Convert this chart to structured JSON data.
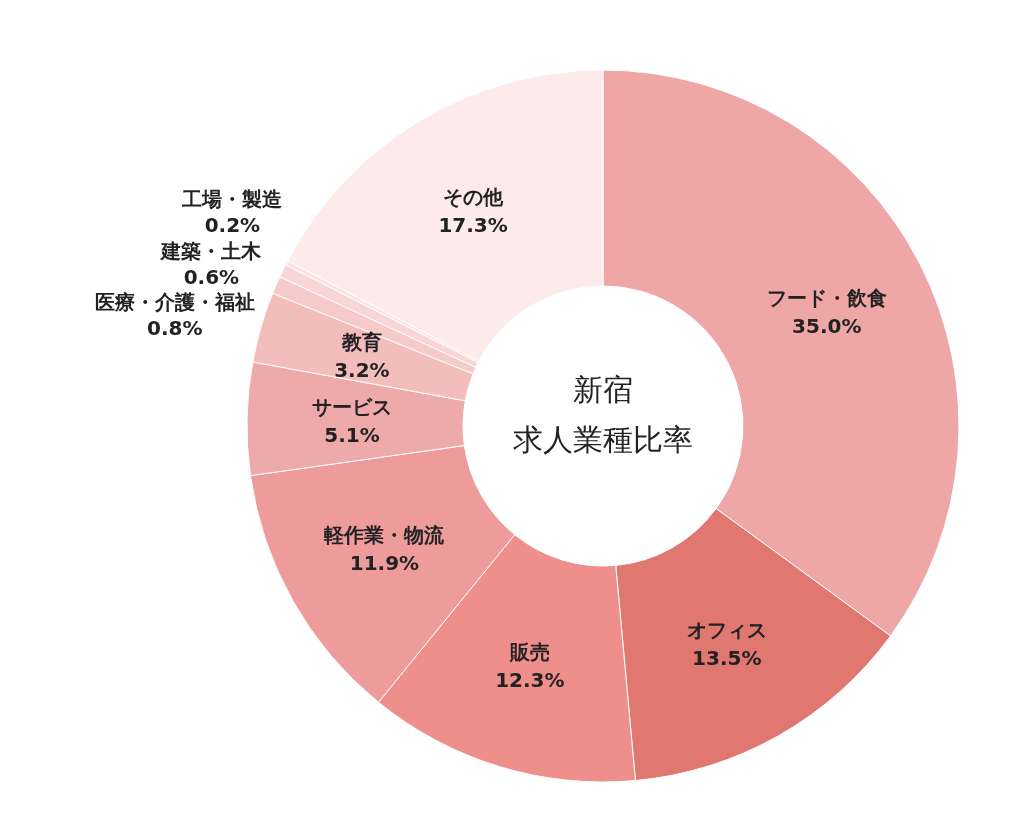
{
  "chart_data": {
    "type": "donut",
    "title": "新宿",
    "subtitle": "求人業種比率",
    "categories": [
      "フード・飲食",
      "オフィス",
      "販売",
      "軽作業・物流",
      "サービス",
      "教育",
      "医療・介護・福祉",
      "建築・土木",
      "工場・製造",
      "その他"
    ],
    "values": [
      35.0,
      13.5,
      12.3,
      11.9,
      5.1,
      3.2,
      0.8,
      0.6,
      0.2,
      17.3
    ],
    "value_labels": [
      "35.0%",
      "13.5%",
      "12.3%",
      "11.9%",
      "5.1%",
      "3.2%",
      "0.8%",
      "0.6%",
      "0.2%",
      "17.3%"
    ],
    "colors": [
      "#eea7a6",
      "#e07770",
      "#ee8f8c",
      "#ee9b9b",
      "#eeaaaa",
      "#f3bdbc",
      "#f7caca",
      "#f9d6d6",
      "#fce2e2",
      "#fdebeb"
    ]
  }
}
